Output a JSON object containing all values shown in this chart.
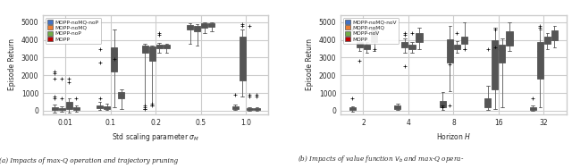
{
  "fig_width": 6.4,
  "fig_height": 1.88,
  "dpi": 100,
  "left_xlabel": "Std scaling parameter $\\sigma_M$",
  "right_xlabel": "Horizon $H$",
  "ylabel": "Episode Return",
  "left_xticks": [
    "0.01",
    "0.1",
    "0.2",
    "0.5",
    "1.0"
  ],
  "right_xticks": [
    "2",
    "4",
    "8",
    "16",
    "32"
  ],
  "left_legend": [
    "MOPP-noMQ-noP",
    "MOPP-noMQ",
    "MOPP-noP",
    "MOPP"
  ],
  "right_legend": [
    "MOPP-noMQ-noV",
    "MOPP-noMQ",
    "MOPP-noV",
    "MOPP"
  ],
  "colors": [
    "#4472C4",
    "#ED7D31",
    "#70AD47",
    "#C00000"
  ],
  "left_caption": "(a) Impacts of max-Q operation and trajectory pruning",
  "right_caption": "(b) Impacts of value function $V_b$ and max-Q opera-",
  "left_data": {
    "MOPP-noMQ-noP": {
      "0.01": {
        "q1": 50,
        "median": 120,
        "q3": 200,
        "whislo": -100,
        "whishi": 350,
        "fliers": [
          700,
          800,
          2100,
          2200,
          1800
        ]
      },
      "0.1": {
        "q1": 150,
        "median": 220,
        "q3": 310,
        "whislo": 50,
        "whishi": 500,
        "fliers": [
          700,
          2700,
          3500
        ]
      },
      "0.2": {
        "q1": 3300,
        "median": 3560,
        "q3": 3700,
        "whislo": 100,
        "whishi": 3800,
        "fliers": [
          100,
          200,
          300
        ]
      },
      "0.5": {
        "q1": 4600,
        "median": 4750,
        "q3": 4850,
        "whislo": 3800,
        "whishi": 4950,
        "fliers": []
      },
      "1.0": {
        "q1": 100,
        "median": 170,
        "q3": 250,
        "whislo": 50,
        "whishi": 350,
        "fliers": [
          900
        ]
      }
    },
    "MOPP-noMQ": {
      "0.01": {
        "q1": 30,
        "median": 80,
        "q3": 150,
        "whislo": -50,
        "whishi": 250,
        "fliers": [
          700,
          1800
        ]
      },
      "0.1": {
        "q1": 100,
        "median": 180,
        "q3": 260,
        "whislo": 20,
        "whishi": 400,
        "fliers": []
      },
      "0.2": {
        "q1": 2800,
        "median": 3400,
        "q3": 3650,
        "whislo": 300,
        "whishi": 3700,
        "fliers": [
          300,
          400
        ]
      },
      "0.5": {
        "q1": 4500,
        "median": 4650,
        "q3": 4800,
        "whislo": 3700,
        "whishi": 4900,
        "fliers": []
      },
      "1.0": {
        "q1": 1700,
        "median": 3200,
        "q3": 4200,
        "whislo": 800,
        "whishi": 4600,
        "fliers": [
          4800,
          4900
        ]
      }
    },
    "MOPP-noP": {
      "0.01": {
        "q1": 80,
        "median": 200,
        "q3": 480,
        "whislo": -100,
        "whishi": 700,
        "fliers": [
          1600,
          1800
        ]
      },
      "0.1": {
        "q1": 2200,
        "median": 3200,
        "q3": 3600,
        "whislo": 200,
        "whishi": 4600,
        "fliers": [
          2900
        ]
      },
      "0.2": {
        "q1": 3550,
        "median": 3660,
        "q3": 3750,
        "whislo": 3300,
        "whishi": 3850,
        "fliers": [
          4300,
          4400
        ]
      },
      "0.5": {
        "q1": 4700,
        "median": 4850,
        "q3": 4950,
        "whislo": 4400,
        "whishi": 5000,
        "fliers": []
      },
      "1.0": {
        "q1": 60,
        "median": 100,
        "q3": 150,
        "whislo": 10,
        "whishi": 200,
        "fliers": [
          800,
          900,
          4800
        ]
      }
    },
    "MOPP": {
      "0.01": {
        "q1": 50,
        "median": 130,
        "q3": 200,
        "whislo": -50,
        "whishi": 280,
        "fliers": [
          700
        ]
      },
      "0.1": {
        "q1": 700,
        "median": 900,
        "q3": 1050,
        "whislo": 100,
        "whishi": 1200,
        "fliers": []
      },
      "0.2": {
        "q1": 3550,
        "median": 3650,
        "q3": 3750,
        "whislo": 3300,
        "whishi": 3800,
        "fliers": []
      },
      "0.5": {
        "q1": 4750,
        "median": 4870,
        "q3": 4950,
        "whislo": 4500,
        "whishi": 5000,
        "fliers": []
      },
      "1.0": {
        "q1": 50,
        "median": 100,
        "q3": 150,
        "whislo": 10,
        "whishi": 200,
        "fliers": [
          800,
          900
        ]
      }
    }
  },
  "right_data": {
    "MOPP-noMQ-noV": {
      "2": {
        "q1": 50,
        "median": 100,
        "q3": 180,
        "whislo": -50,
        "whishi": 250,
        "fliers": [
          700,
          4600
        ]
      },
      "4": {
        "q1": 100,
        "median": 200,
        "q3": 280,
        "whislo": 20,
        "whishi": 400,
        "fliers": []
      },
      "8": {
        "q1": 200,
        "median": 350,
        "q3": 550,
        "whislo": 50,
        "whishi": 1050,
        "fliers": [
          200,
          300
        ]
      },
      "16": {
        "q1": 200,
        "median": 430,
        "q3": 700,
        "whislo": 50,
        "whishi": 1400,
        "fliers": [
          3500
        ]
      },
      "32": {
        "q1": 50,
        "median": 120,
        "q3": 200,
        "whislo": 10,
        "whishi": 300,
        "fliers": [
          700
        ]
      }
    },
    "MOPP-noMQ": {
      "2": {
        "q1": 3600,
        "median": 3750,
        "q3": 3900,
        "whislo": 3400,
        "whishi": 4200,
        "fliers": [
          4600,
          4700,
          2800
        ]
      },
      "4": {
        "q1": 3600,
        "median": 3750,
        "q3": 3900,
        "whislo": 3300,
        "whishi": 4100,
        "fliers": [
          4300,
          4400,
          2500
        ]
      },
      "8": {
        "q1": 2700,
        "median": 3600,
        "q3": 4050,
        "whislo": 1100,
        "whishi": 4800,
        "fliers": [
          2600,
          300
        ]
      },
      "16": {
        "q1": 1200,
        "median": 3500,
        "q3": 4000,
        "whislo": 100,
        "whishi": 4700,
        "fliers": [
          3600,
          4600
        ]
      },
      "32": {
        "q1": 1800,
        "median": 3400,
        "q3": 3900,
        "whislo": 200,
        "whishi": 4600,
        "fliers": [
          4700,
          4800
        ]
      }
    },
    "MOPP-noV": {
      "2": {
        "q1": 3500,
        "median": 3650,
        "q3": 3750,
        "whislo": 3300,
        "whishi": 3900,
        "fliers": [
          4600
        ]
      },
      "4": {
        "q1": 3500,
        "median": 3620,
        "q3": 3750,
        "whislo": 3300,
        "whishi": 3900,
        "fliers": [
          4400
        ]
      },
      "8": {
        "q1": 3500,
        "median": 3620,
        "q3": 3750,
        "whislo": 3300,
        "whishi": 3950,
        "fliers": [
          4400
        ]
      },
      "16": {
        "q1": 2700,
        "median": 3450,
        "q3": 3750,
        "whislo": 200,
        "whishi": 4100,
        "fliers": []
      },
      "32": {
        "q1": 3800,
        "median": 4000,
        "q3": 4200,
        "whislo": 3500,
        "whishi": 4400,
        "fliers": []
      }
    },
    "MOPP": {
      "2": {
        "q1": 3900,
        "median": 4300,
        "q3": 4600,
        "whislo": 3400,
        "whishi": 4700,
        "fliers": [
          3500
        ]
      },
      "4": {
        "q1": 3900,
        "median": 4150,
        "q3": 4400,
        "whislo": 3500,
        "whishi": 4700,
        "fliers": []
      },
      "8": {
        "q1": 3800,
        "median": 4000,
        "q3": 4200,
        "whislo": 3500,
        "whishi": 5000,
        "fliers": [
          3500
        ]
      },
      "16": {
        "q1": 3700,
        "median": 3950,
        "q3": 4500,
        "whislo": 3400,
        "whishi": 5000,
        "fliers": []
      },
      "32": {
        "q1": 4000,
        "median": 4200,
        "q3": 4550,
        "whislo": 3600,
        "whishi": 4800,
        "fliers": []
      }
    }
  }
}
